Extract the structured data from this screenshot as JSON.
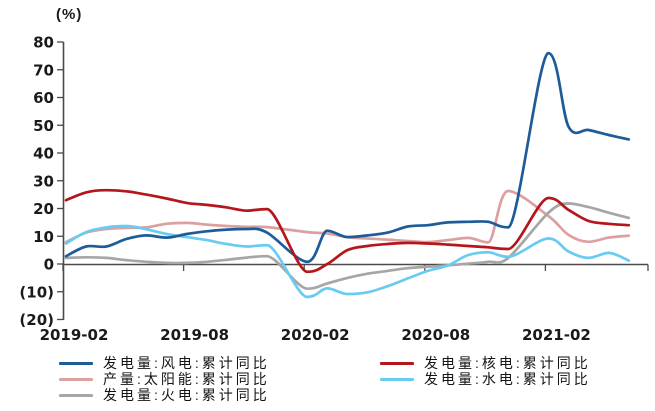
{
  "chart_data": {
    "type": "line",
    "unit_label": "(%)",
    "x_axis": {
      "tick_labels": [
        "2019-02",
        "2019-08",
        "2020-02",
        "2020-08",
        "2021-02"
      ],
      "tick_months": [
        0,
        6,
        12,
        18,
        24
      ],
      "months_span": 28,
      "note_months_are_offsets_from": "2019-02"
    },
    "y_axis": {
      "min": -20,
      "max": 80,
      "step": 10,
      "tick_labels": [
        "80",
        "70",
        "60",
        "50",
        "40",
        "30",
        "20",
        "10",
        "0",
        "(10)",
        "(20)"
      ],
      "tick_values": [
        80,
        70,
        60,
        50,
        40,
        30,
        20,
        10,
        0,
        -10,
        -20
      ],
      "negative_label_color": "#ff0000"
    },
    "legend": {
      "left_column": [
        0,
        1,
        2
      ],
      "right_column": [
        3,
        4
      ]
    },
    "series": [
      {
        "id": "wind",
        "name": "发电量:风电:累计同比",
        "color": "#1e5c99",
        "points": [
          [
            0,
            2.8
          ],
          [
            1,
            6.3
          ],
          [
            2,
            6.3
          ],
          [
            3,
            9.0
          ],
          [
            4,
            10.3
          ],
          [
            5,
            9.5
          ],
          [
            6,
            10.8
          ],
          [
            7,
            11.8
          ],
          [
            8,
            12.4
          ],
          [
            9,
            12.6
          ],
          [
            10,
            11.3
          ],
          [
            12,
            0.8
          ],
          [
            13,
            12.0
          ],
          [
            14,
            9.7
          ],
          [
            15,
            10.3
          ],
          [
            16,
            11.3
          ],
          [
            17,
            13.5
          ],
          [
            18,
            14.0
          ],
          [
            19,
            15.0
          ],
          [
            20,
            15.2
          ],
          [
            21,
            15.2
          ],
          [
            22,
            13.2
          ],
          [
            24,
            76.0
          ],
          [
            25,
            49.5
          ],
          [
            26,
            48.3
          ],
          [
            27,
            46.5
          ],
          [
            28,
            44.9
          ]
        ]
      },
      {
        "id": "solar",
        "name": "产量:太阳能:累计同比",
        "color": "#dda0a0",
        "points": [
          [
            0,
            7.9
          ],
          [
            1,
            11.3
          ],
          [
            2,
            12.6
          ],
          [
            3,
            13.0
          ],
          [
            4,
            13.2
          ],
          [
            5,
            14.5
          ],
          [
            6,
            14.8
          ],
          [
            7,
            14.2
          ],
          [
            8,
            13.7
          ],
          [
            9,
            13.4
          ],
          [
            10,
            13.3
          ],
          [
            12,
            11.5
          ],
          [
            13,
            11.0
          ],
          [
            14,
            9.7
          ],
          [
            15,
            9.2
          ],
          [
            16,
            8.8
          ],
          [
            17,
            8.3
          ],
          [
            18,
            7.9
          ],
          [
            19,
            8.6
          ],
          [
            20,
            9.4
          ],
          [
            21,
            7.8
          ],
          [
            22,
            26.3
          ],
          [
            24,
            17.3
          ],
          [
            25,
            10.5
          ],
          [
            26,
            8.0
          ],
          [
            27,
            9.5
          ],
          [
            28,
            10.2
          ]
        ]
      },
      {
        "id": "thermal",
        "name": "发电量:火电:累计同比",
        "color": "#a6a6a6",
        "points": [
          [
            0,
            2.2
          ],
          [
            1,
            2.4
          ],
          [
            2,
            2.2
          ],
          [
            3,
            1.4
          ],
          [
            4,
            0.8
          ],
          [
            5,
            0.4
          ],
          [
            6,
            0.4
          ],
          [
            7,
            0.8
          ],
          [
            8,
            1.5
          ],
          [
            9,
            2.3
          ],
          [
            10,
            2.8
          ],
          [
            12,
            -8.9
          ],
          [
            13,
            -7.0
          ],
          [
            14,
            -5.0
          ],
          [
            15,
            -3.5
          ],
          [
            16,
            -2.5
          ],
          [
            17,
            -1.5
          ],
          [
            18,
            -1.0
          ],
          [
            19,
            -0.5
          ],
          [
            20,
            0.1
          ],
          [
            21,
            0.8
          ],
          [
            22,
            2.2
          ],
          [
            24,
            18.5
          ],
          [
            25,
            21.8
          ],
          [
            26,
            20.5
          ],
          [
            27,
            18.5
          ],
          [
            28,
            16.6
          ]
        ]
      },
      {
        "id": "nuclear",
        "name": "发电量:核电:累计同比",
        "color": "#b5161b",
        "points": [
          [
            0,
            23.0
          ],
          [
            1,
            25.8
          ],
          [
            2,
            26.6
          ],
          [
            3,
            26.2
          ],
          [
            4,
            25.0
          ],
          [
            5,
            23.6
          ],
          [
            6,
            22.0
          ],
          [
            7,
            21.3
          ],
          [
            8,
            20.4
          ],
          [
            9,
            19.2
          ],
          [
            10,
            19.8
          ],
          [
            12,
            -2.8
          ],
          [
            13,
            0.0
          ],
          [
            14,
            5.0
          ],
          [
            15,
            6.5
          ],
          [
            16,
            7.2
          ],
          [
            17,
            7.6
          ],
          [
            18,
            7.4
          ],
          [
            19,
            7.0
          ],
          [
            20,
            6.5
          ],
          [
            21,
            6.0
          ],
          [
            22,
            5.4
          ],
          [
            24,
            23.8
          ],
          [
            25,
            19.5
          ],
          [
            26,
            15.5
          ],
          [
            27,
            14.5
          ],
          [
            28,
            14.0
          ]
        ]
      },
      {
        "id": "hydro",
        "name": "发电量:水电:累计同比",
        "color": "#68cbf0",
        "points": [
          [
            0,
            7.4
          ],
          [
            1,
            11.5
          ],
          [
            2,
            13.2
          ],
          [
            3,
            13.7
          ],
          [
            4,
            12.5
          ],
          [
            5,
            10.8
          ],
          [
            6,
            9.7
          ],
          [
            7,
            8.6
          ],
          [
            8,
            7.2
          ],
          [
            9,
            6.3
          ],
          [
            10,
            6.8
          ],
          [
            12,
            -11.9
          ],
          [
            13,
            -8.8
          ],
          [
            14,
            -10.8
          ],
          [
            15,
            -10.2
          ],
          [
            16,
            -8.0
          ],
          [
            17,
            -5.2
          ],
          [
            18,
            -2.5
          ],
          [
            19,
            -0.5
          ],
          [
            20,
            3.2
          ],
          [
            21,
            4.2
          ],
          [
            22,
            2.6
          ],
          [
            24,
            9.2
          ],
          [
            25,
            4.5
          ],
          [
            26,
            2.2
          ],
          [
            27,
            4.0
          ],
          [
            28,
            1.2
          ]
        ]
      }
    ]
  }
}
